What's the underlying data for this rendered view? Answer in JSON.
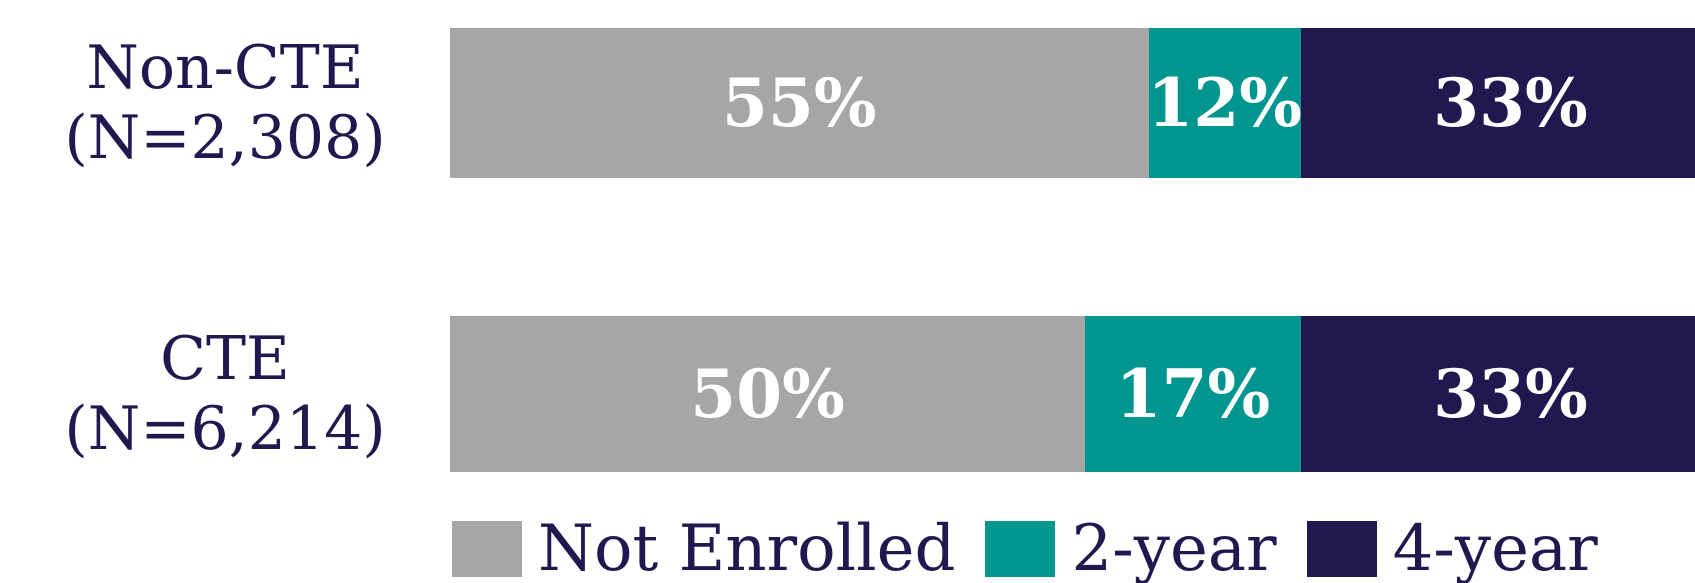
{
  "chart_data": {
    "type": "stacked_barh",
    "categories": [
      "Non-CTE (N=2,308)",
      "CTE (N=6,214)"
    ],
    "series": [
      {
        "name": "Not Enrolled",
        "color": "#a6a6a6",
        "values": [
          55,
          50
        ],
        "value_labels": [
          "55%",
          "50%"
        ]
      },
      {
        "name": "2-year",
        "color": "#00968f",
        "values": [
          12,
          17
        ],
        "value_labels": [
          "12%",
          "17%"
        ]
      },
      {
        "name": "4-year",
        "color": "#22174f",
        "values": [
          33,
          33
        ],
        "value_labels": [
          "33%",
          "33%"
        ]
      }
    ],
    "xlim": [
      0,
      100
    ],
    "legend": "bottom"
  }
}
